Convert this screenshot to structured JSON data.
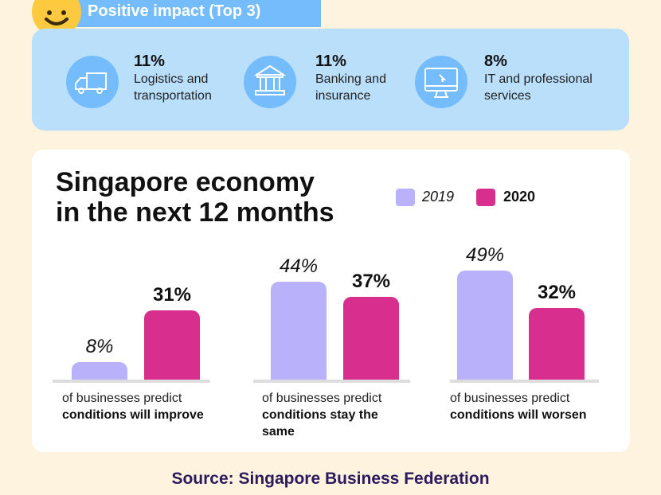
{
  "header": {
    "title": "Positive impact (Top 3)"
  },
  "impacts": [
    {
      "icon": "truck-icon",
      "pct": "11%",
      "line1": "Logistics and",
      "line2": "transportation"
    },
    {
      "icon": "bank-icon",
      "pct": "11%",
      "line1": "Banking and",
      "line2": "insurance"
    },
    {
      "icon": "monitor-icon",
      "pct": "8%",
      "line1": "IT and professional",
      "line2": "services"
    }
  ],
  "source": "Source: Singapore Business Federation",
  "colors": {
    "c2019": "#b9b2fb",
    "c2020": "#d82f8f"
  },
  "chart_data": {
    "type": "bar",
    "title_line1": "Singapore economy",
    "title_line2": "in the next 12 months",
    "legend": [
      "2019",
      "2020"
    ],
    "categories": [
      {
        "pre": "of businesses predict",
        "bold": "conditions will improve"
      },
      {
        "pre": "of businesses predict",
        "bold": "conditions stay the same"
      },
      {
        "pre": "of businesses predict",
        "bold": "conditions will worsen"
      }
    ],
    "series": [
      {
        "name": "2019",
        "values": [
          8,
          44,
          49
        ],
        "labels": [
          "8%",
          "44%",
          "49%"
        ]
      },
      {
        "name": "2020",
        "values": [
          31,
          37,
          32
        ],
        "labels": [
          "31%",
          "37%",
          "32%"
        ]
      }
    ],
    "ylim": [
      0,
      50
    ]
  }
}
